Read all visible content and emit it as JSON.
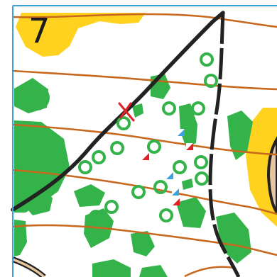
{
  "map": {
    "control_number": "7",
    "colors": {
      "open_land": "#ffd21f",
      "vegetation": "#33b34a",
      "contour": "#c8681e",
      "track": "#222222",
      "feature_ring": "#33b34a",
      "route_mark": "#e32026",
      "map_frame": "#3da1dc",
      "path_fill": "#e7c7a1"
    },
    "symbols": {
      "boulder_markers_red": 3,
      "boulder_markers_blue": 3,
      "route_cross": "red-x"
    }
  }
}
